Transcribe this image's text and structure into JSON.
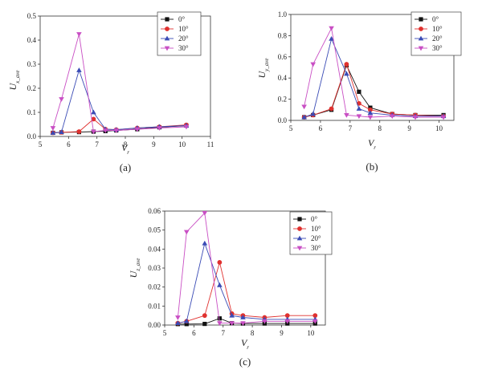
{
  "figure": {
    "panels": [
      {
        "caption": "(a)",
        "xlabel": {
          "main": "V",
          "sub": "r"
        },
        "ylabel": {
          "main": "U",
          "sub": "x_ave"
        },
        "xlim": [
          5,
          11
        ],
        "ylim": [
          0,
          0.5
        ],
        "xticks": [
          "5",
          "6",
          "7",
          "8",
          "9",
          "10",
          "11"
        ],
        "yticks": [
          "0.0",
          "0.1",
          "0.2",
          "0.3",
          "0.4",
          "0.5"
        ],
        "legend": {
          "placement": "top-right",
          "entries": [
            "0°",
            "10°",
            "20°",
            "30°"
          ]
        }
      },
      {
        "caption": "(b)",
        "xlabel": {
          "main": "V",
          "sub": "r"
        },
        "ylabel": {
          "main": "U",
          "sub": "y_ave"
        },
        "xlim": [
          5,
          10.5
        ],
        "ylim": [
          0,
          1.0
        ],
        "xticks": [
          "5",
          "6",
          "7",
          "8",
          "9",
          "10"
        ],
        "yticks": [
          "0.0",
          "0.2",
          "0.4",
          "0.6",
          "0.8",
          "1.0"
        ],
        "legend": {
          "placement": "top-right",
          "entries": [
            "0°",
            "10°",
            "20°",
            "30°"
          ]
        }
      },
      {
        "caption": "(c)",
        "xlabel": {
          "main": "V",
          "sub": "r"
        },
        "ylabel": {
          "main": "U",
          "sub": "z_ave"
        },
        "xlim": [
          5,
          10.5
        ],
        "ylim": [
          0,
          0.06
        ],
        "xticks": [
          "5",
          "6",
          "7",
          "8",
          "9",
          "10"
        ],
        "yticks": [
          "0.00",
          "0.01",
          "0.02",
          "0.03",
          "0.04",
          "0.05",
          "0.06"
        ],
        "legend": {
          "placement": "top-right",
          "entries": [
            "0°",
            "10°",
            "20°",
            "30°"
          ]
        }
      }
    ]
  },
  "chart_data": [
    {
      "type": "line",
      "xlabel": "Vr",
      "ylabel": "Ux_ave",
      "xlim": [
        5,
        11
      ],
      "ylim": [
        0,
        0.5
      ],
      "grid": false,
      "legend": "top-right",
      "series": [
        {
          "name": "0°",
          "color": "#111111",
          "marker": "square",
          "x": [
            5.45,
            5.75,
            6.37,
            6.88,
            7.3,
            7.68,
            8.42,
            9.2,
            10.15
          ],
          "y": [
            0.015,
            0.017,
            0.018,
            0.02,
            0.022,
            0.025,
            0.03,
            0.038,
            0.045
          ]
        },
        {
          "name": "10°",
          "color": "#e0312f",
          "marker": "circle",
          "x": [
            5.45,
            5.75,
            6.37,
            6.88,
            7.3,
            7.68,
            8.42,
            9.2,
            10.15
          ],
          "y": [
            0.015,
            0.017,
            0.02,
            0.072,
            0.03,
            0.028,
            0.035,
            0.04,
            0.048
          ]
        },
        {
          "name": "20°",
          "color": "#3a4bb5",
          "marker": "triangle-up",
          "x": [
            5.45,
            5.75,
            6.37,
            6.88,
            7.3,
            7.68,
            8.42,
            9.2,
            10.15
          ],
          "y": [
            0.015,
            0.018,
            0.275,
            0.1,
            0.03,
            0.028,
            0.035,
            0.04,
            0.045
          ]
        },
        {
          "name": "30°",
          "color": "#c94fc4",
          "marker": "triangle-down",
          "x": [
            5.45,
            5.75,
            6.37,
            6.88,
            7.3,
            7.68,
            8.42,
            9.2,
            10.15
          ],
          "y": [
            0.035,
            0.155,
            0.425,
            0.02,
            0.025,
            0.025,
            0.03,
            0.035,
            0.04
          ]
        }
      ]
    },
    {
      "type": "line",
      "xlabel": "Vr",
      "ylabel": "Uy_ave",
      "xlim": [
        5,
        10.5
      ],
      "ylim": [
        0,
        1.0
      ],
      "grid": false,
      "legend": "top-right",
      "series": [
        {
          "name": "0°",
          "color": "#111111",
          "marker": "square",
          "x": [
            5.45,
            5.75,
            6.37,
            6.88,
            7.3,
            7.68,
            8.42,
            9.2,
            10.15
          ],
          "y": [
            0.03,
            0.05,
            0.1,
            0.52,
            0.27,
            0.12,
            0.06,
            0.05,
            0.05
          ]
        },
        {
          "name": "10°",
          "color": "#e0312f",
          "marker": "circle",
          "x": [
            5.45,
            5.75,
            6.37,
            6.88,
            7.3,
            7.68,
            8.42,
            9.2,
            10.15
          ],
          "y": [
            0.03,
            0.05,
            0.11,
            0.53,
            0.16,
            0.1,
            0.06,
            0.05,
            0.04
          ]
        },
        {
          "name": "20°",
          "color": "#3a4bb5",
          "marker": "triangle-up",
          "x": [
            5.45,
            5.75,
            6.37,
            6.88,
            7.3,
            7.68,
            8.42,
            9.2,
            10.15
          ],
          "y": [
            0.03,
            0.06,
            0.77,
            0.44,
            0.11,
            0.07,
            0.05,
            0.04,
            0.04
          ]
        },
        {
          "name": "30°",
          "color": "#c94fc4",
          "marker": "triangle-down",
          "x": [
            5.45,
            5.75,
            6.37,
            6.88,
            7.3,
            7.68,
            8.42,
            9.2,
            10.15
          ],
          "y": [
            0.13,
            0.53,
            0.87,
            0.05,
            0.04,
            0.03,
            0.04,
            0.03,
            0.03
          ]
        }
      ]
    },
    {
      "type": "line",
      "xlabel": "Vr",
      "ylabel": "Uz_ave",
      "xlim": [
        5,
        10.5
      ],
      "ylim": [
        0,
        0.06
      ],
      "grid": false,
      "legend": "top-right",
      "series": [
        {
          "name": "0°",
          "color": "#111111",
          "marker": "square",
          "x": [
            5.45,
            5.75,
            6.37,
            6.88,
            7.3,
            7.68,
            8.42,
            9.2,
            10.15
          ],
          "y": [
            0.0005,
            0.0005,
            0.0006,
            0.0035,
            0.001,
            0.0008,
            0.0008,
            0.0008,
            0.0008
          ]
        },
        {
          "name": "10°",
          "color": "#e0312f",
          "marker": "circle",
          "x": [
            5.45,
            5.75,
            6.37,
            6.88,
            7.3,
            7.68,
            8.42,
            9.2,
            10.15
          ],
          "y": [
            0.001,
            0.002,
            0.005,
            0.033,
            0.006,
            0.005,
            0.004,
            0.005,
            0.005
          ]
        },
        {
          "name": "20°",
          "color": "#3a4bb5",
          "marker": "triangle-up",
          "x": [
            5.45,
            5.75,
            6.37,
            6.88,
            7.3,
            7.68,
            8.42,
            9.2,
            10.15
          ],
          "y": [
            0.001,
            0.002,
            0.043,
            0.021,
            0.005,
            0.004,
            0.003,
            0.003,
            0.003
          ]
        },
        {
          "name": "30°",
          "color": "#c94fc4",
          "marker": "triangle-down",
          "x": [
            5.45,
            5.75,
            6.37,
            6.88,
            7.3,
            7.68,
            8.42,
            9.2,
            10.15
          ],
          "y": [
            0.004,
            0.049,
            0.059,
            0.001,
            0.001,
            0.001,
            0.002,
            0.002,
            0.002
          ]
        }
      ]
    }
  ]
}
